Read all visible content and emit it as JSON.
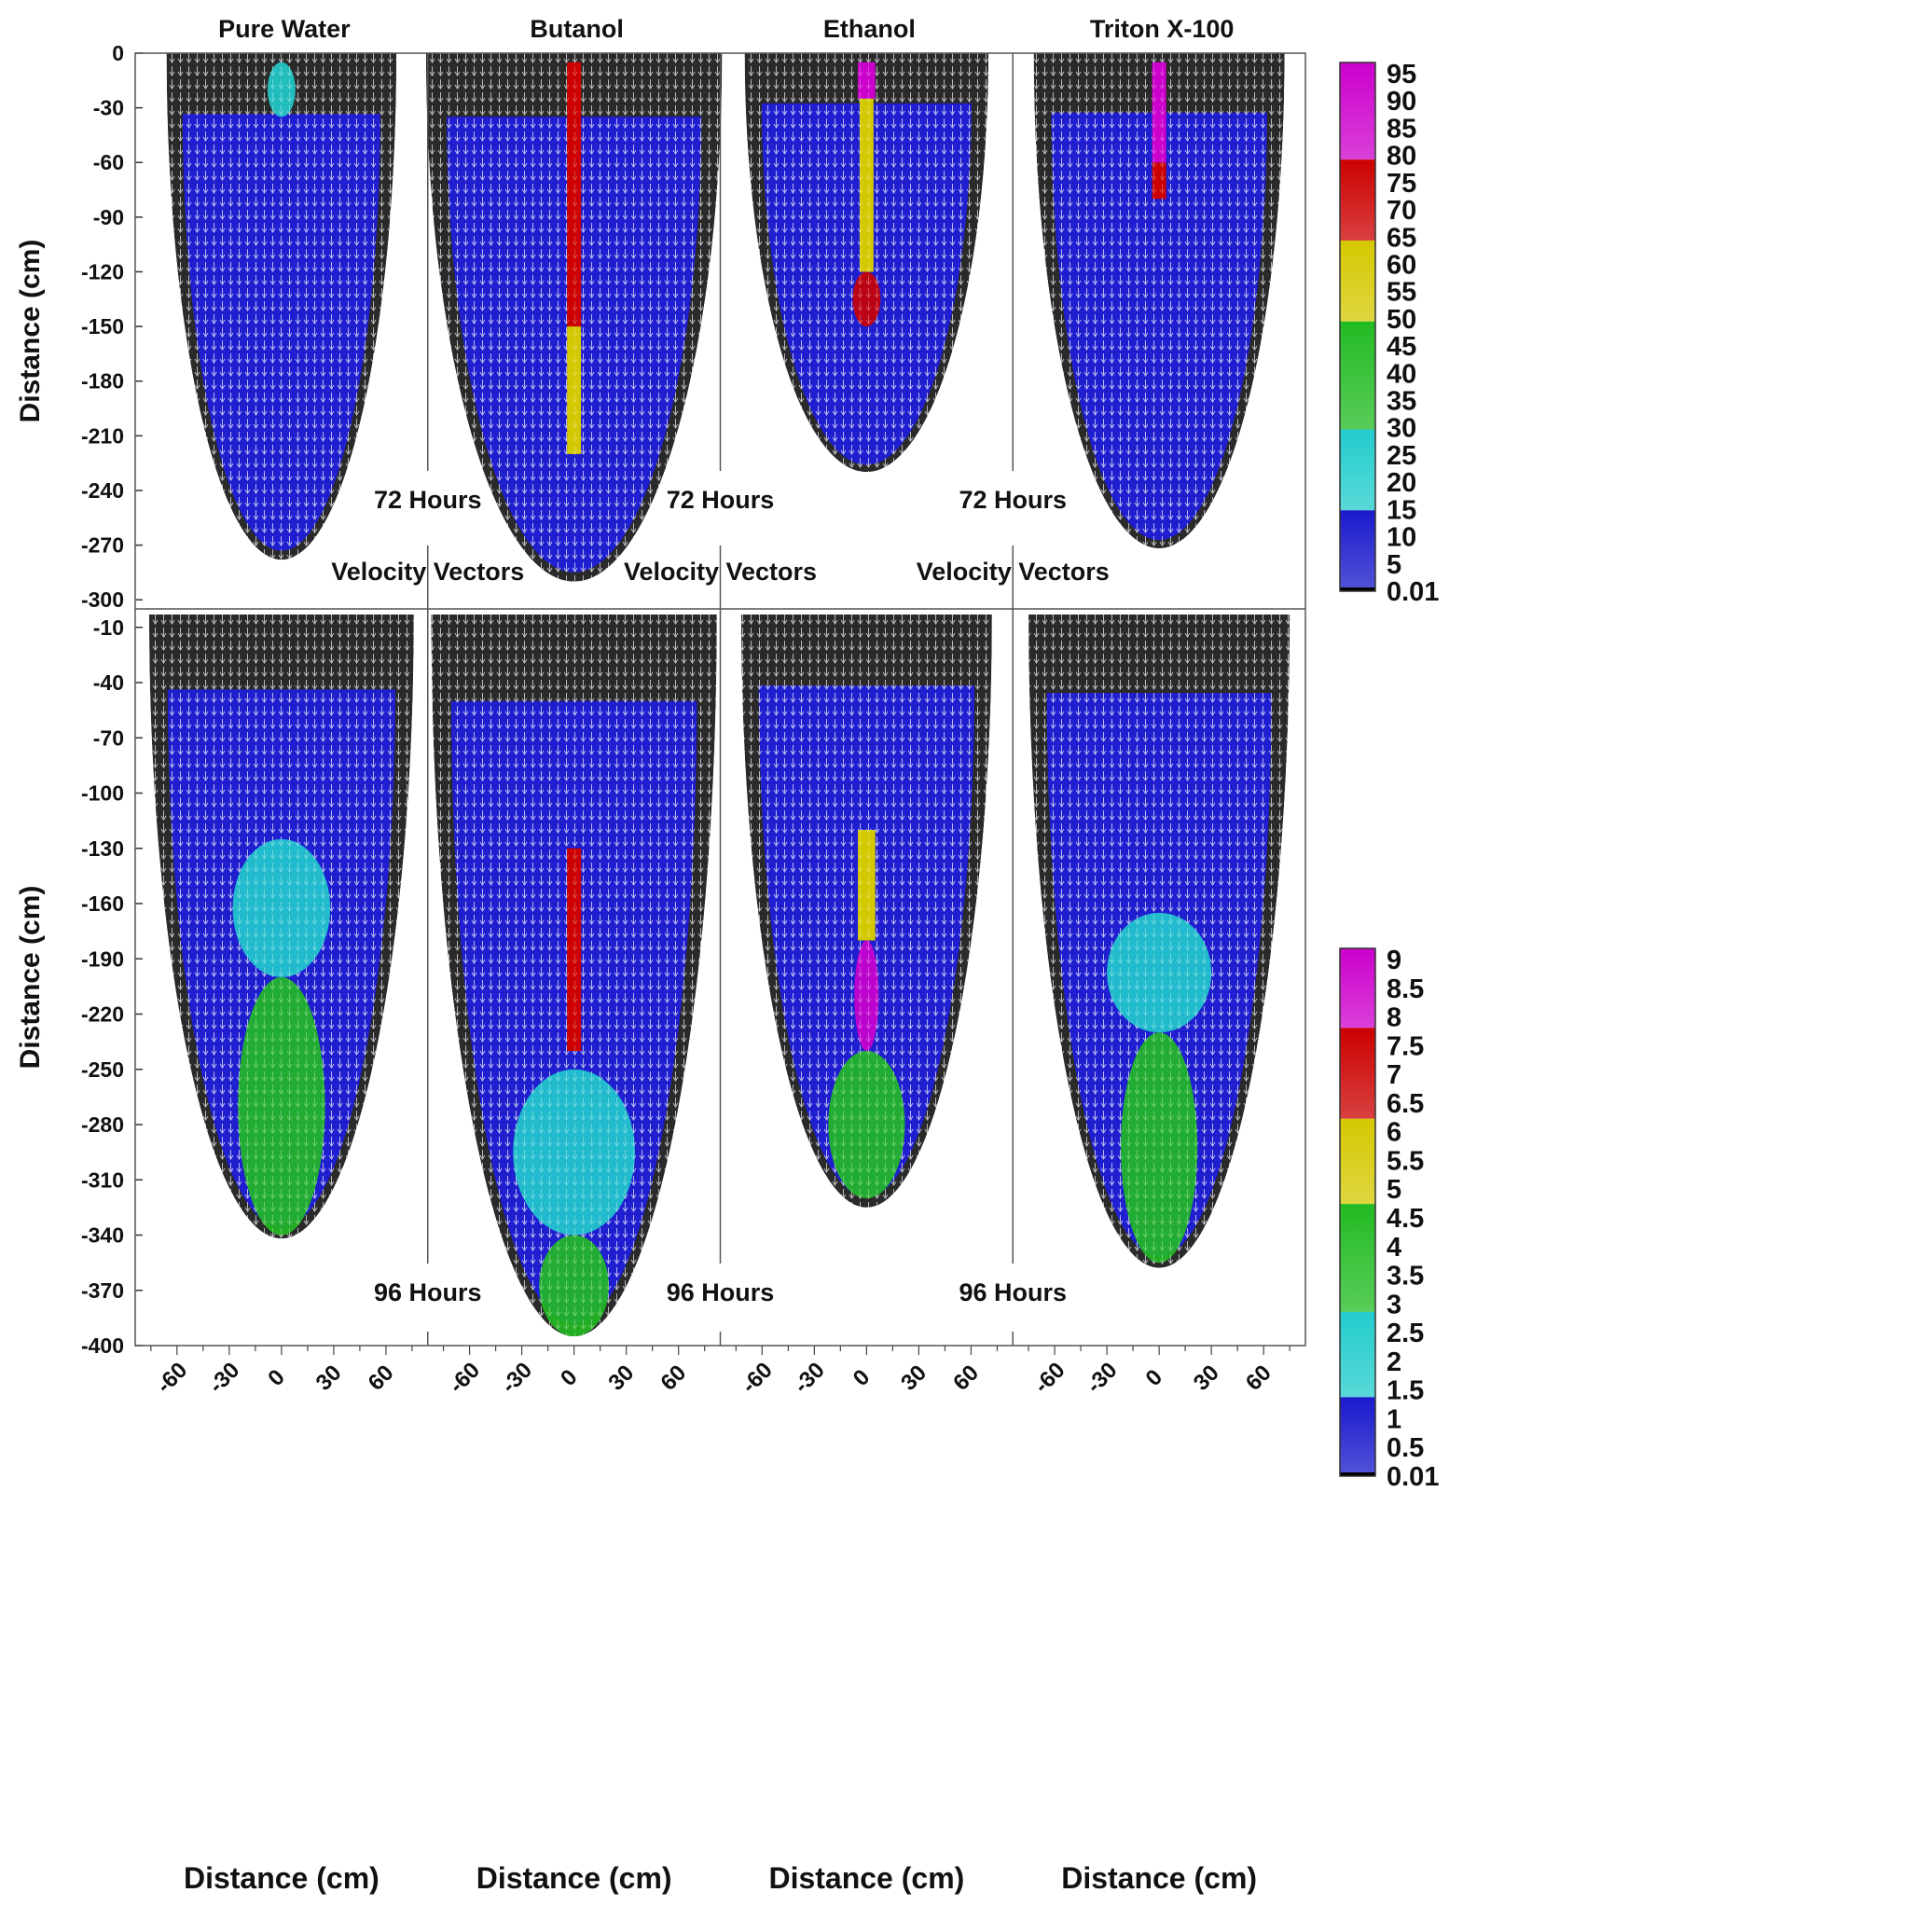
{
  "chart_data": {
    "type": "vector-field",
    "panel_titles": [
      "Pure Water",
      "Butanol",
      "Ethanol",
      "Triton X-100"
    ],
    "xlabel": "Distance (cm)",
    "ylabel": "Distance (cm)",
    "x_ticks": [
      -60,
      -30,
      0,
      30,
      60
    ],
    "xlim": [
      -84,
      84
    ],
    "grid": false,
    "legend_placement": "right",
    "rows": [
      {
        "time_label": "72 Hours",
        "annotation": "Velocity Vectors",
        "ylim": [
          -305,
          0
        ],
        "y_ticks": [
          0,
          -30,
          -60,
          -90,
          -120,
          -150,
          -180,
          -210,
          -240,
          -270,
          -300
        ],
        "colorbar": {
          "tick_labels": [
            "95",
            "90",
            "85",
            "80",
            "75",
            "70",
            "65",
            "60",
            "55",
            "50",
            "45",
            "40",
            "35",
            "30",
            "25",
            "20",
            "15",
            "10",
            "5",
            "0.01"
          ],
          "bands": [
            {
              "from": 80,
              "to": 98,
              "color": "#cc00cc"
            },
            {
              "from": 65,
              "to": 80,
              "color": "#cc0000"
            },
            {
              "from": 50,
              "to": 65,
              "color": "#d4c800"
            },
            {
              "from": 30,
              "to": 50,
              "color": "#22bb22"
            },
            {
              "from": 15,
              "to": 30,
              "color": "#22cccc"
            },
            {
              "from": 0.01,
              "to": 15,
              "color": "#1a1acc"
            }
          ]
        },
        "panels": [
          {
            "name": "Pure Water",
            "plume_bottom": -278,
            "plume_half_width": 66,
            "high_band_zones": [
              {
                "level": "cyan",
                "top": -5,
                "bottom": -35,
                "half_width": 8
              }
            ]
          },
          {
            "name": "Butanol",
            "plume_bottom": -290,
            "plume_half_width": 85,
            "high_band_zones": [
              {
                "level": "red",
                "top": -5,
                "bottom": -150,
                "half_width": 4
              },
              {
                "level": "yellow",
                "top": -150,
                "bottom": -220,
                "half_width": 4
              }
            ]
          },
          {
            "name": "Ethanol",
            "plume_bottom": -230,
            "plume_half_width": 70,
            "high_band_zones": [
              {
                "level": "magenta",
                "top": -5,
                "bottom": -25,
                "half_width": 5
              },
              {
                "level": "yellow",
                "top": -25,
                "bottom": -120,
                "half_width": 4
              },
              {
                "level": "red",
                "top": -120,
                "bottom": -150,
                "half_width": 8
              }
            ]
          },
          {
            "name": "Triton X-100",
            "plume_bottom": -272,
            "plume_half_width": 72,
            "high_band_zones": [
              {
                "level": "magenta",
                "top": -5,
                "bottom": -60,
                "half_width": 4
              },
              {
                "level": "red",
                "top": -60,
                "bottom": -80,
                "half_width": 4
              }
            ]
          }
        ]
      },
      {
        "time_label": "96 Hours",
        "annotation": "",
        "ylim": [
          -400,
          0
        ],
        "y_ticks": [
          -10,
          -40,
          -70,
          -100,
          -130,
          -160,
          -190,
          -220,
          -250,
          -280,
          -310,
          -340,
          -370,
          -400
        ],
        "colorbar": {
          "tick_labels": [
            "9",
            "8.5",
            "8",
            "7.5",
            "7",
            "6.5",
            "6",
            "5.5",
            "5",
            "4.5",
            "4",
            "3.5",
            "3",
            "2.5",
            "2",
            "1.5",
            "1",
            "0.5",
            "0.01"
          ],
          "bands": [
            {
              "from": 7.9,
              "to": 9.3,
              "color": "#cc00cc"
            },
            {
              "from": 6.3,
              "to": 7.9,
              "color": "#cc0000"
            },
            {
              "from": 4.8,
              "to": 6.3,
              "color": "#d4c800"
            },
            {
              "from": 2.9,
              "to": 4.8,
              "color": "#22bb22"
            },
            {
              "from": 1.4,
              "to": 2.9,
              "color": "#22cccc"
            },
            {
              "from": 0.01,
              "to": 1.4,
              "color": "#1a1acc"
            }
          ]
        },
        "panels": [
          {
            "name": "Pure Water",
            "plume_bottom": -342,
            "plume_half_width": 76,
            "high_band_zones": [
              {
                "level": "cyan",
                "top": -125,
                "bottom": -200,
                "half_width": 28
              },
              {
                "level": "green",
                "top": -200,
                "bottom": -340,
                "half_width": 25
              }
            ]
          },
          {
            "name": "Butanol",
            "plume_bottom": -395,
            "plume_half_width": 82,
            "high_band_zones": [
              {
                "level": "red",
                "top": -130,
                "bottom": -240,
                "half_width": 4
              },
              {
                "level": "cyan",
                "top": -250,
                "bottom": -340,
                "half_width": 35
              },
              {
                "level": "green",
                "top": -340,
                "bottom": -395,
                "half_width": 20
              }
            ]
          },
          {
            "name": "Ethanol",
            "plume_bottom": -325,
            "plume_half_width": 72,
            "high_band_zones": [
              {
                "level": "yellow",
                "top": -120,
                "bottom": -180,
                "half_width": 5
              },
              {
                "level": "magenta",
                "top": -180,
                "bottom": -240,
                "half_width": 7
              },
              {
                "level": "green",
                "top": -240,
                "bottom": -320,
                "half_width": 22
              }
            ]
          },
          {
            "name": "Triton X-100",
            "plume_bottom": -358,
            "plume_half_width": 75,
            "high_band_zones": [
              {
                "level": "cyan",
                "top": -165,
                "bottom": -230,
                "half_width": 30
              },
              {
                "level": "green",
                "top": -230,
                "bottom": -355,
                "half_width": 22
              }
            ]
          }
        ]
      }
    ]
  }
}
